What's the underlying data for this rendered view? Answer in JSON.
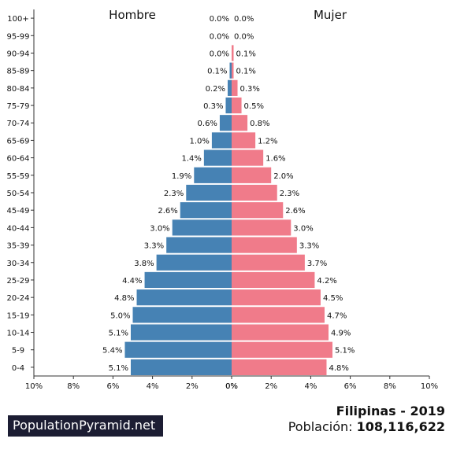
{
  "chart_data": {
    "type": "bar",
    "orientation": "horizontal-population-pyramid",
    "categories": [
      "100+",
      "95-99",
      "90-94",
      "85-89",
      "80-84",
      "75-79",
      "70-74",
      "65-69",
      "60-64",
      "55-59",
      "50-54",
      "45-49",
      "40-44",
      "35-39",
      "30-34",
      "25-29",
      "20-24",
      "15-19",
      "10-14",
      "5-9",
      "0-4"
    ],
    "series": [
      {
        "name": "Hombre",
        "color": "#4682b4",
        "values": [
          0.0,
          0.0,
          0.0,
          0.1,
          0.2,
          0.3,
          0.6,
          1.0,
          1.4,
          1.9,
          2.3,
          2.6,
          3.0,
          3.3,
          3.8,
          4.4,
          4.8,
          5.0,
          5.1,
          5.4,
          5.1
        ],
        "labels": [
          "0.0%",
          "0.0%",
          "0.0%",
          "0.1%",
          "0.2%",
          "0.3%",
          "0.6%",
          "1.0%",
          "1.4%",
          "1.9%",
          "2.3%",
          "2.6%",
          "3.0%",
          "3.3%",
          "3.8%",
          "4.4%",
          "4.8%",
          "5.0%",
          "5.1%",
          "5.4%",
          "5.1%"
        ]
      },
      {
        "name": "Mujer",
        "color": "#f07b8a",
        "values": [
          0.0,
          0.0,
          0.1,
          0.1,
          0.3,
          0.5,
          0.8,
          1.2,
          1.6,
          2.0,
          2.3,
          2.6,
          3.0,
          3.3,
          3.7,
          4.2,
          4.5,
          4.7,
          4.9,
          5.1,
          4.8
        ],
        "labels": [
          "0.0%",
          "0.0%",
          "0.1%",
          "0.1%",
          "0.3%",
          "0.5%",
          "0.8%",
          "1.2%",
          "1.6%",
          "2.0%",
          "2.3%",
          "2.6%",
          "3.0%",
          "3.3%",
          "3.7%",
          "4.2%",
          "4.5%",
          "4.7%",
          "4.9%",
          "5.1%",
          "4.8%"
        ]
      }
    ],
    "xlim": [
      0,
      10
    ],
    "x_ticks_left": [
      "10%",
      "8%",
      "6%",
      "4%",
      "2%",
      "0%"
    ],
    "x_ticks_right": [
      "0%",
      "2%",
      "4%",
      "6%",
      "8%",
      "10%"
    ],
    "grid": false
  },
  "footer": {
    "brand": "PopulationPyramid.net",
    "country_year": "Filipinas - 2019",
    "population_label": "Población:",
    "population_value": "108,116,622"
  }
}
